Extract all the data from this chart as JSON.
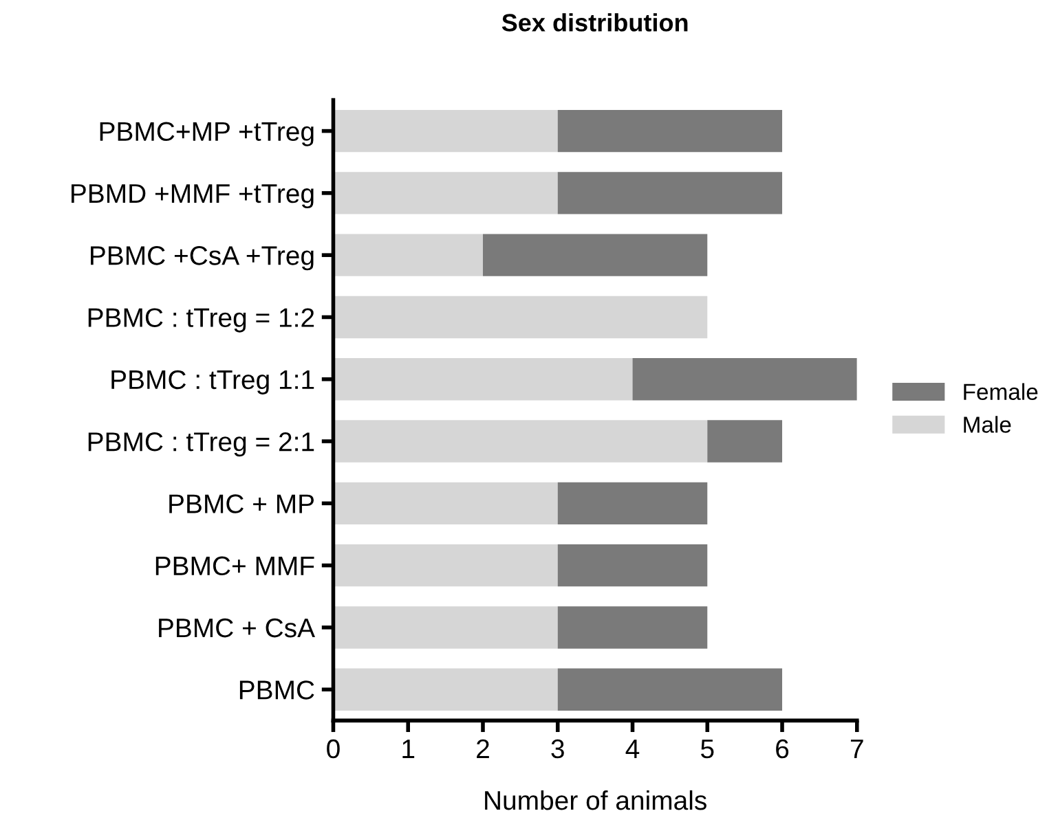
{
  "chart_data": {
    "type": "bar",
    "title": "Sex distribution",
    "xlabel": "Number of animals",
    "orientation": "horizontal",
    "stacked": true,
    "categories": [
      "PBMC+MP +tTreg",
      "PBMD +MMF +tTreg",
      "PBMC +CsA +Treg",
      "PBMC : tTreg = 1:2",
      "PBMC : tTreg 1:1",
      "PBMC : tTreg = 2:1",
      "PBMC + MP",
      "PBMC+ MMF",
      "PBMC + CsA",
      "PBMC"
    ],
    "series": [
      {
        "name": "Male",
        "color": "#d6d6d6",
        "values": [
          3,
          3,
          2,
          5,
          4,
          5,
          3,
          3,
          3,
          3
        ]
      },
      {
        "name": "Female",
        "color": "#7a7a7a",
        "values": [
          3,
          3,
          3,
          0,
          3,
          1,
          2,
          2,
          2,
          3
        ]
      }
    ],
    "xlim": [
      0,
      7
    ],
    "xticks": [
      0,
      1,
      2,
      3,
      4,
      5,
      6,
      7
    ],
    "grid": false,
    "legend": "right"
  }
}
